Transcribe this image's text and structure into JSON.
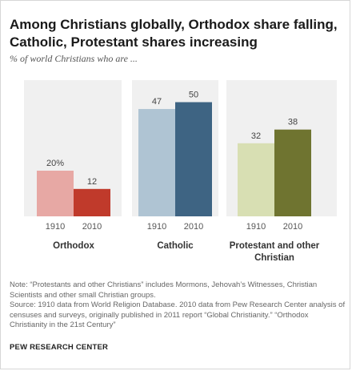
{
  "title": "Among Christians globally, Orthodox share falling, Catholic, Protestant shares increasing",
  "subtitle": "% of world Christians who are ...",
  "chart_data": {
    "type": "bar",
    "ylim": [
      0,
      55
    ],
    "groups": [
      {
        "label": "Orthodox",
        "bars": [
          {
            "year": "1910",
            "value": 20,
            "label": "20%",
            "color": "#e7a8a4"
          },
          {
            "year": "2010",
            "value": 12,
            "label": "12",
            "color": "#c03a2b"
          }
        ]
      },
      {
        "label": "Catholic",
        "bars": [
          {
            "year": "1910",
            "value": 47,
            "label": "47",
            "color": "#afc4d3"
          },
          {
            "year": "2010",
            "value": 50,
            "label": "50",
            "color": "#3e6483"
          }
        ]
      },
      {
        "label": "Protestant and other Christian",
        "label_lines": [
          "Protestant and other",
          "Christian"
        ],
        "bars": [
          {
            "year": "1910",
            "value": 32,
            "label": "32",
            "color": "#d8dfb3"
          },
          {
            "year": "2010",
            "value": 38,
            "label": "38",
            "color": "#6f7430"
          }
        ]
      }
    ],
    "group_band_color": "#f0f0f0"
  },
  "note": {
    "line1": "Note: “Protestants and other Christians” includes Mormons, Jehovah’s Witnesses, Christian Scientists and other small Christian groups.",
    "line2": "Source: 1910 data from World Religion Database. 2010 data from Pew Research Center analysis of censuses and surveys, originally published in 2011 report “Global Christianity.” “Orthodox Christianity in the 21st Century”"
  },
  "brand": "PEW RESEARCH CENTER"
}
